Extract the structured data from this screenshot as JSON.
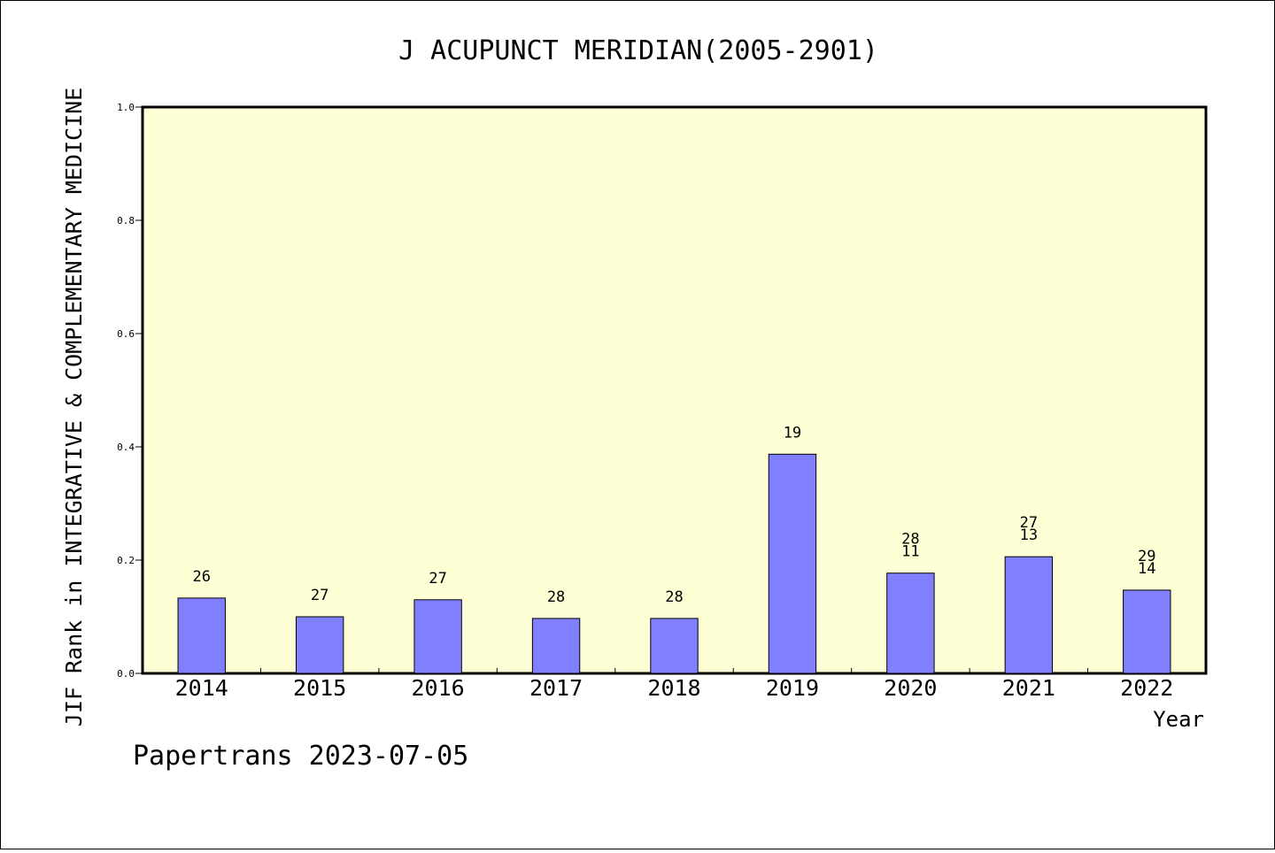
{
  "chart_data": {
    "type": "bar",
    "title": "J ACUPUNCT MERIDIAN(2005-2901)",
    "xlabel": "Year",
    "ylabel": "JIF Rank in INTEGRATIVE & COMPLEMENTARY MEDICINE",
    "footer": "Papertrans 2023-07-05",
    "categories": [
      "2014",
      "2015",
      "2016",
      "2017",
      "2018",
      "2019",
      "2020",
      "2021",
      "2022"
    ],
    "values": [
      0.133,
      0.1,
      0.13,
      0.097,
      0.097,
      0.387,
      0.177,
      0.206,
      0.147
    ],
    "labels": [
      [
        "26"
      ],
      [
        "27"
      ],
      [
        "27"
      ],
      [
        "28"
      ],
      [
        "28"
      ],
      [
        "19"
      ],
      [
        "28",
        "11"
      ],
      [
        "27",
        "13"
      ],
      [
        "29",
        "14"
      ]
    ],
    "yticks": [
      "0.0",
      "0.2",
      "0.4",
      "0.6",
      "0.8",
      "1.0"
    ],
    "ylim": [
      0,
      1.0
    ],
    "grid": false,
    "colors": {
      "plot_bg": "#FFFFD5",
      "bar": "#8080FF",
      "axis": "#000000"
    }
  }
}
